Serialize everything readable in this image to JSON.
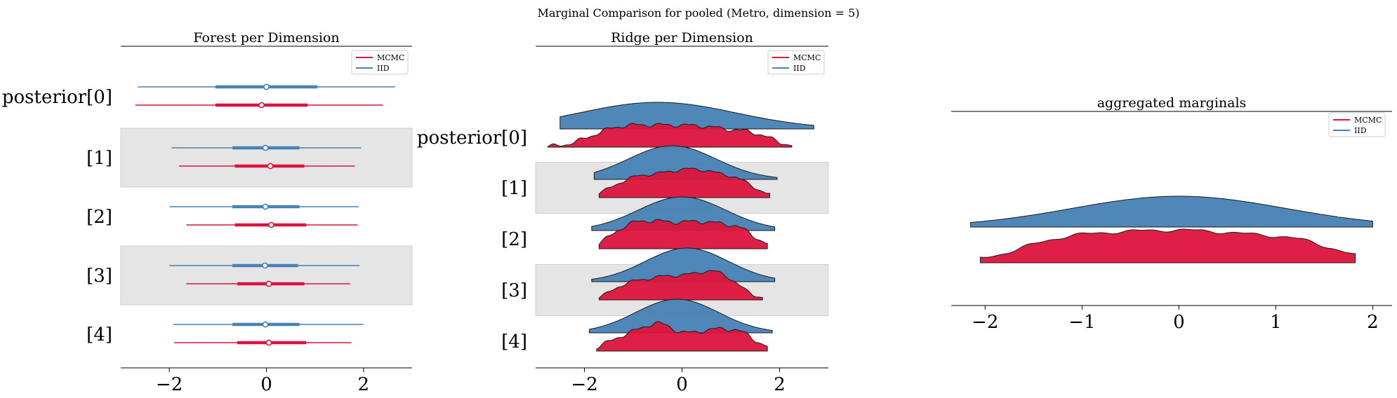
{
  "suptitle": "Marginal Comparison for pooled (Metro, dimension = 5)",
  "colors": {
    "mcmc": "#DC143C",
    "iid": "#4682B4",
    "band": "#e5e5e5"
  },
  "legend": {
    "entries": [
      "MCMC",
      "IID"
    ],
    "placement": "upper right"
  },
  "chart_data": [
    {
      "type": "forest",
      "title": "Forest per Dimension",
      "xlim": [
        -3,
        3
      ],
      "xticks": [
        -2,
        0,
        2
      ],
      "xticklabels": [
        "−2",
        "0",
        "2"
      ],
      "ylabels": [
        "posterior[0]",
        "[1]",
        "[2]",
        "[3]",
        "[4]"
      ],
      "shaded_rows": [
        1,
        3
      ],
      "series": [
        {
          "name": "IID",
          "rows": [
            {
              "hdi94": [
                -2.65,
                2.65
              ],
              "iqr": [
                -1.05,
                1.05
              ],
              "median": 0.0
            },
            {
              "hdi94": [
                -1.95,
                1.95
              ],
              "iqr": [
                -0.7,
                0.68
              ],
              "median": -0.02
            },
            {
              "hdi94": [
                -2.0,
                1.9
              ],
              "iqr": [
                -0.7,
                0.68
              ],
              "median": -0.02
            },
            {
              "hdi94": [
                -2.0,
                1.92
              ],
              "iqr": [
                -0.7,
                0.65
              ],
              "median": -0.03
            },
            {
              "hdi94": [
                -1.92,
                2.0
              ],
              "iqr": [
                -0.7,
                0.68
              ],
              "median": -0.02
            }
          ]
        },
        {
          "name": "MCMC",
          "rows": [
            {
              "hdi94": [
                -2.7,
                2.4
              ],
              "iqr": [
                -1.05,
                0.85
              ],
              "median": -0.1
            },
            {
              "hdi94": [
                -1.8,
                1.82
              ],
              "iqr": [
                -0.65,
                0.78
              ],
              "median": 0.08
            },
            {
              "hdi94": [
                -1.65,
                1.88
              ],
              "iqr": [
                -0.65,
                0.82
              ],
              "median": 0.1
            },
            {
              "hdi94": [
                -1.65,
                1.72
              ],
              "iqr": [
                -0.6,
                0.78
              ],
              "median": 0.05
            },
            {
              "hdi94": [
                -1.9,
                1.75
              ],
              "iqr": [
                -0.6,
                0.82
              ],
              "median": 0.05
            }
          ]
        }
      ]
    },
    {
      "type": "ridgeline",
      "title": "Ridge per Dimension",
      "xlim": [
        -3,
        3
      ],
      "xticks": [
        -2,
        0,
        2
      ],
      "xticklabels": [
        "−2",
        "0",
        "2"
      ],
      "ylabels": [
        "posterior[0]",
        "[1]",
        "[2]",
        "[3]",
        "[4]"
      ],
      "shaded_rows": [
        1,
        3
      ],
      "series": [
        {
          "name": "IID",
          "rows": [
            {
              "range": [
                -2.5,
                2.7
              ],
              "peaks": [
                [
                  -0.5,
                  1.0,
                  1.6
                ]
              ],
              "wiggle": 0.0
            },
            {
              "range": [
                -1.8,
                1.95
              ],
              "peaks": [
                [
                  -0.2,
                  1.0,
                  0.9
                ]
              ],
              "wiggle": 0.0
            },
            {
              "range": [
                -1.85,
                1.9
              ],
              "peaks": [
                [
                  0.0,
                  1.0,
                  0.9
                ]
              ],
              "wiggle": 0.0
            },
            {
              "range": [
                -1.85,
                1.9
              ],
              "peaks": [
                [
                  0.1,
                  1.0,
                  0.85
                ]
              ],
              "wiggle": 0.0
            },
            {
              "range": [
                -1.9,
                1.85
              ],
              "peaks": [
                [
                  -0.1,
                  1.0,
                  0.85
                ]
              ],
              "wiggle": 0.0
            }
          ]
        },
        {
          "name": "MCMC",
          "rows": [
            {
              "range": [
                -2.75,
                2.25
              ],
              "peaks": [
                [
                  -0.6,
                  0.9,
                  0.7
                ],
                [
                  0.6,
                  0.75,
                  0.6
                ],
                [
                  -1.5,
                  0.5,
                  0.5
                ],
                [
                  1.5,
                  0.45,
                  0.4
                ]
              ],
              "wiggle": 0.15
            },
            {
              "range": [
                -1.7,
                1.8
              ],
              "peaks": [
                [
                  -0.3,
                  1.0,
                  0.6
                ],
                [
                  0.5,
                  0.9,
                  0.5
                ],
                [
                  1.2,
                  0.55,
                  0.35
                ],
                [
                  -1.1,
                  0.55,
                  0.4
                ]
              ],
              "wiggle": 0.12
            },
            {
              "range": [
                -1.7,
                1.75
              ],
              "peaks": [
                [
                  -0.6,
                  0.85,
                  0.45
                ],
                [
                  0.4,
                  0.95,
                  0.5
                ],
                [
                  1.2,
                  0.55,
                  0.35
                ],
                [
                  -1.2,
                  0.5,
                  0.35
                ]
              ],
              "wiggle": 0.12
            },
            {
              "range": [
                -1.7,
                1.65
              ],
              "peaks": [
                [
                  0.2,
                  0.9,
                  0.55
                ],
                [
                  0.8,
                  0.85,
                  0.4
                ],
                [
                  -0.6,
                  0.75,
                  0.45
                ],
                [
                  -1.2,
                  0.45,
                  0.3
                ]
              ],
              "wiggle": 0.12
            },
            {
              "range": [
                -1.75,
                1.75
              ],
              "peaks": [
                [
                  -0.5,
                  1.05,
                  0.35
                ],
                [
                  0.5,
                  0.8,
                  0.45
                ],
                [
                  1.2,
                  0.6,
                  0.35
                ],
                [
                  -1.2,
                  0.55,
                  0.35
                ]
              ],
              "wiggle": 0.14
            }
          ]
        }
      ]
    },
    {
      "type": "ridgeline",
      "title": "aggregated marginals",
      "xlim": [
        -2.35,
        2.2
      ],
      "xticks": [
        -2,
        -1,
        0,
        1,
        2
      ],
      "xticklabels": [
        "−2",
        "−1",
        "0",
        "1",
        "2"
      ],
      "ylabels": [],
      "series": [
        {
          "name": "IID",
          "rows": [
            {
              "range": [
                -2.15,
                2.0
              ],
              "peaks": [
                [
                  0.0,
                  1.0,
                  1.1
                ]
              ],
              "wiggle": 0.0
            }
          ]
        },
        {
          "name": "MCMC",
          "rows": [
            {
              "range": [
                -2.05,
                1.82
              ],
              "peaks": [
                [
                  -0.5,
                  0.9,
                  0.6
                ],
                [
                  0.5,
                  0.9,
                  0.6
                ],
                [
                  -1.3,
                  0.55,
                  0.45
                ],
                [
                  1.3,
                  0.5,
                  0.4
                ]
              ],
              "wiggle": 0.1
            }
          ]
        }
      ]
    }
  ]
}
